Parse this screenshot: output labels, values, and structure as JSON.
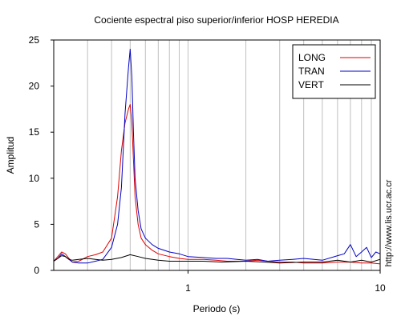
{
  "chart_data": {
    "type": "line",
    "title": "Cociente espectral piso superior/inferior  HOSP HEREDIA",
    "xlabel": "Periodo (s)",
    "ylabel": "Amplitud",
    "xscale": "log",
    "xlim": [
      0.2,
      10
    ],
    "ylim": [
      0,
      25
    ],
    "xticks": [
      1,
      10
    ],
    "yticks": [
      0,
      5,
      10,
      15,
      20,
      25
    ],
    "grid": "vertical",
    "legend_position": "top-right",
    "watermark": "http://www.lis.ucr.ac.cr",
    "series": [
      {
        "name": "LONG",
        "color": "#e00000",
        "x": [
          0.2,
          0.21,
          0.22,
          0.23,
          0.24,
          0.25,
          0.27,
          0.3,
          0.33,
          0.36,
          0.4,
          0.43,
          0.45,
          0.47,
          0.49,
          0.5,
          0.51,
          0.52,
          0.53,
          0.55,
          0.57,
          0.6,
          0.65,
          0.7,
          0.8,
          0.9,
          1.0,
          1.2,
          1.4,
          1.6,
          1.8,
          2.0,
          2.3,
          2.6,
          3.0,
          3.5,
          4.0,
          5.0,
          6.0,
          7.0,
          8.0,
          9.0,
          10.0
        ],
        "y": [
          1.0,
          1.5,
          2.0,
          1.8,
          1.3,
          0.9,
          1.0,
          1.5,
          1.7,
          2.0,
          3.5,
          8.0,
          13.0,
          16.0,
          17.5,
          18.0,
          16.0,
          12.0,
          8.0,
          5.0,
          3.5,
          2.8,
          2.2,
          1.8,
          1.5,
          1.3,
          1.2,
          1.2,
          1.1,
          1.0,
          1.0,
          1.0,
          1.1,
          1.0,
          0.9,
          0.9,
          0.8,
          0.8,
          0.9,
          0.9,
          0.8,
          0.8,
          0.7
        ]
      },
      {
        "name": "TRAN",
        "color": "#0000c8",
        "x": [
          0.2,
          0.21,
          0.22,
          0.23,
          0.24,
          0.25,
          0.27,
          0.3,
          0.33,
          0.36,
          0.4,
          0.43,
          0.45,
          0.47,
          0.49,
          0.5,
          0.51,
          0.52,
          0.53,
          0.55,
          0.57,
          0.6,
          0.65,
          0.7,
          0.8,
          0.9,
          1.0,
          1.2,
          1.4,
          1.6,
          1.8,
          2.0,
          2.3,
          2.6,
          3.0,
          3.5,
          4.0,
          5.0,
          6.0,
          6.5,
          7.0,
          7.5,
          8.0,
          8.5,
          9.0,
          9.5,
          10.0
        ],
        "y": [
          1.0,
          1.3,
          1.8,
          1.5,
          1.2,
          0.9,
          0.8,
          0.8,
          1.0,
          1.2,
          2.5,
          5.0,
          9.0,
          17.0,
          22.0,
          24.0,
          21.0,
          15.0,
          10.0,
          6.5,
          4.5,
          3.5,
          2.8,
          2.4,
          2.0,
          1.8,
          1.5,
          1.4,
          1.3,
          1.3,
          1.2,
          1.1,
          1.2,
          1.0,
          1.1,
          1.2,
          1.3,
          1.1,
          1.6,
          1.8,
          2.8,
          1.5,
          2.0,
          2.5,
          1.4,
          2.0,
          1.8
        ]
      },
      {
        "name": "VERT",
        "color": "#000000",
        "x": [
          0.2,
          0.21,
          0.22,
          0.23,
          0.24,
          0.25,
          0.27,
          0.3,
          0.33,
          0.36,
          0.4,
          0.45,
          0.5,
          0.55,
          0.6,
          0.7,
          0.8,
          1.0,
          1.2,
          1.5,
          2.0,
          2.5,
          3.0,
          4.0,
          5.0,
          6.0,
          7.0,
          8.0,
          9.0,
          10.0
        ],
        "y": [
          1.0,
          1.3,
          1.6,
          1.5,
          1.2,
          1.1,
          1.2,
          1.3,
          1.2,
          1.1,
          1.2,
          1.4,
          1.7,
          1.5,
          1.3,
          1.1,
          1.0,
          1.0,
          1.0,
          0.9,
          1.0,
          0.9,
          0.8,
          0.9,
          0.9,
          1.1,
          0.9,
          1.1,
          0.9,
          1.2
        ]
      }
    ]
  }
}
